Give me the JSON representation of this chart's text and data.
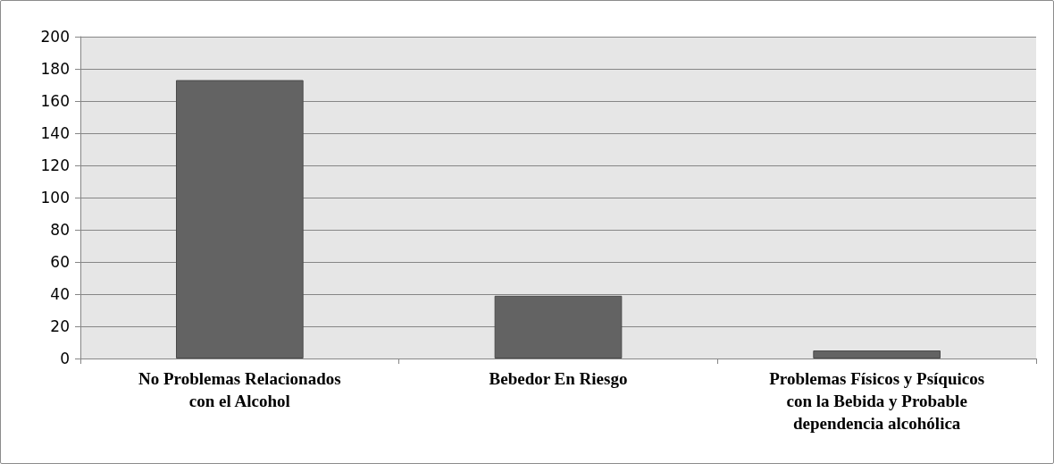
{
  "chart_data": {
    "type": "bar",
    "categories": [
      "No Problemas Relacionados\ncon el Alcohol",
      "Bebedor En Riesgo",
      "Problemas Físicos y Psíquicos\ncon la Bebida y Probable\ndependencia alcohólica"
    ],
    "values": [
      173,
      39,
      5
    ],
    "color": "#636363",
    "ylim": [
      0,
      200
    ],
    "yticks": [
      0,
      20,
      40,
      60,
      80,
      100,
      120,
      140,
      160,
      180,
      200
    ],
    "grid": "y"
  }
}
